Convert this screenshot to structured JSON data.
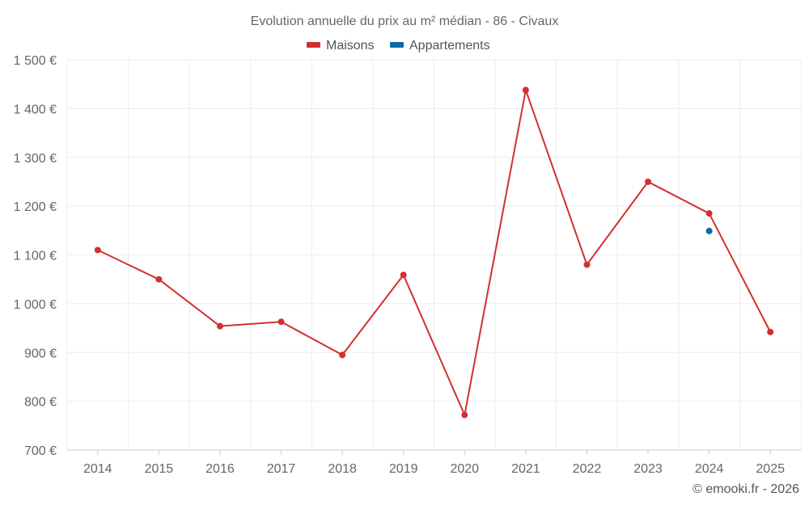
{
  "chart_data": {
    "type": "line",
    "title": "Evolution annuelle du prix au m² médian - 86 - Civaux",
    "xlabel": "",
    "ylabel": "",
    "categories": [
      "2014",
      "2015",
      "2016",
      "2017",
      "2018",
      "2019",
      "2020",
      "2021",
      "2022",
      "2023",
      "2024",
      "2025"
    ],
    "ylim": [
      700,
      1500
    ],
    "yticks": [
      700,
      800,
      900,
      1000,
      1100,
      1200,
      1300,
      1400,
      1500
    ],
    "ytick_labels": [
      "700 €",
      "800 €",
      "900 €",
      "1 000 €",
      "1 100 €",
      "1 200 €",
      "1 300 €",
      "1 400 €",
      "1 500 €"
    ],
    "grid": true,
    "legend_position": "top-center",
    "series": [
      {
        "name": "Maisons",
        "color": "#d32f2f",
        "values": [
          1110,
          1050,
          954,
          963,
          895,
          1059,
          772,
          1438,
          1080,
          1250,
          1185,
          942
        ]
      },
      {
        "name": "Appartements",
        "color": "#0b6aa2",
        "values": [
          null,
          null,
          null,
          null,
          null,
          null,
          null,
          null,
          null,
          null,
          1149,
          null
        ]
      }
    ]
  },
  "credit": "© emooki.fr - 2026"
}
